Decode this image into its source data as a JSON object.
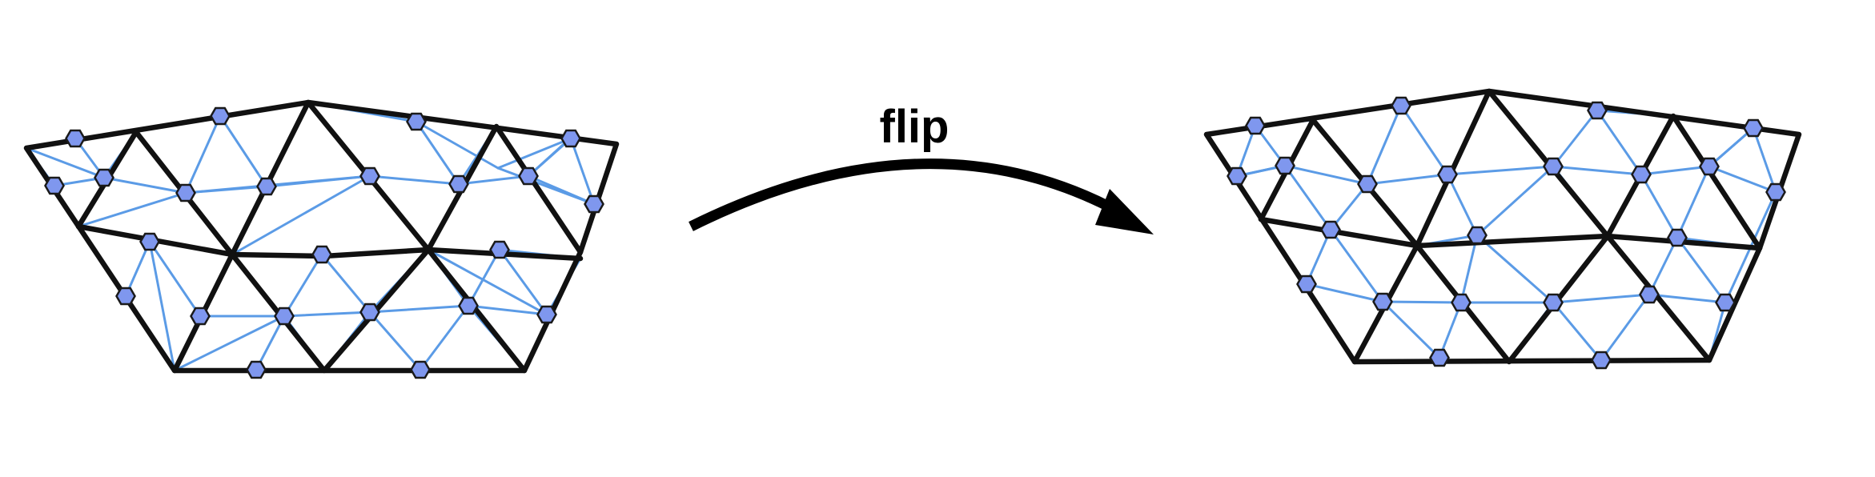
{
  "label": "flip",
  "colors": {
    "coarse_edge": "#111111",
    "fine_edge": "#5b9be6",
    "vertex_fill": "#7f97ee",
    "vertex_stroke": "#1a1a1a",
    "arrow": "#000000"
  }
}
